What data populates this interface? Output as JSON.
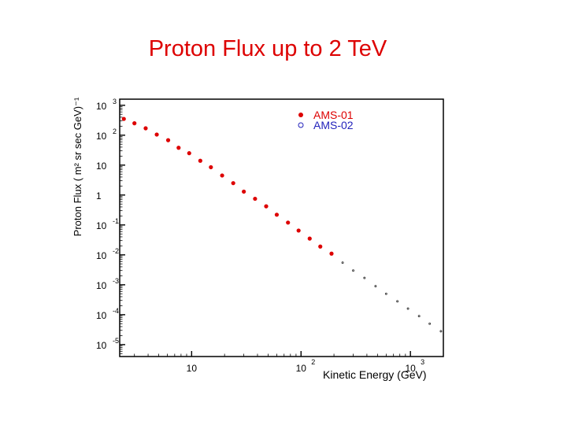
{
  "slide": {
    "title": "Proton Flux up to 2 TeV"
  },
  "chart_data": {
    "type": "scatter",
    "xlabel": "Kinetic Energy (GeV)",
    "ylabel": "Proton Flux ( m² sr sec GeV)⁻¹",
    "xscale": "log",
    "yscale": "log",
    "xlim": [
      2.2,
      2000
    ],
    "ylim": [
      4e-06,
      1600
    ],
    "xticks": [
      {
        "value": 10,
        "base": "10",
        "exp": ""
      },
      {
        "value": 100,
        "base": "10",
        "exp": "2"
      },
      {
        "value": 1000,
        "base": "10",
        "exp": "3"
      }
    ],
    "yticks": [
      {
        "value": 1000,
        "base": "10",
        "exp": "3"
      },
      {
        "value": 100,
        "base": "10",
        "exp": "2"
      },
      {
        "value": 10,
        "base": "10",
        "exp": ""
      },
      {
        "value": 1,
        "base": "1",
        "exp": ""
      },
      {
        "value": 0.1,
        "base": "10",
        "exp": "-1"
      },
      {
        "value": 0.01,
        "base": "10",
        "exp": "-2"
      },
      {
        "value": 0.001,
        "base": "10",
        "exp": "-3"
      },
      {
        "value": 0.0001,
        "base": "10",
        "exp": "-4"
      },
      {
        "value": 1e-05,
        "base": "10",
        "exp": "-5"
      }
    ],
    "legend_position": "top-right",
    "series": [
      {
        "name": "AMS-01",
        "color": "#dd0000",
        "marker": "filled-circle",
        "x": [
          2.4,
          3.0,
          3.8,
          4.8,
          6.1,
          7.6,
          9.5,
          12,
          15,
          19,
          24,
          30,
          38,
          48,
          60,
          76,
          95,
          120,
          150,
          190
        ],
        "y": [
          350,
          250,
          170,
          105,
          68,
          38,
          25,
          14,
          8.5,
          4.5,
          2.5,
          1.3,
          0.75,
          0.42,
          0.22,
          0.12,
          0.065,
          0.035,
          0.019,
          0.011
        ]
      },
      {
        "name": "AMS-02",
        "color": "#2222bb",
        "marker": "open-circle",
        "x": [
          240,
          300,
          380,
          480,
          600,
          760,
          950,
          1200,
          1500,
          1900
        ],
        "y": [
          0.0055,
          0.003,
          0.0017,
          0.0009,
          0.0005,
          0.00028,
          0.00016,
          9e-05,
          5e-05,
          2.8e-05
        ]
      }
    ]
  }
}
